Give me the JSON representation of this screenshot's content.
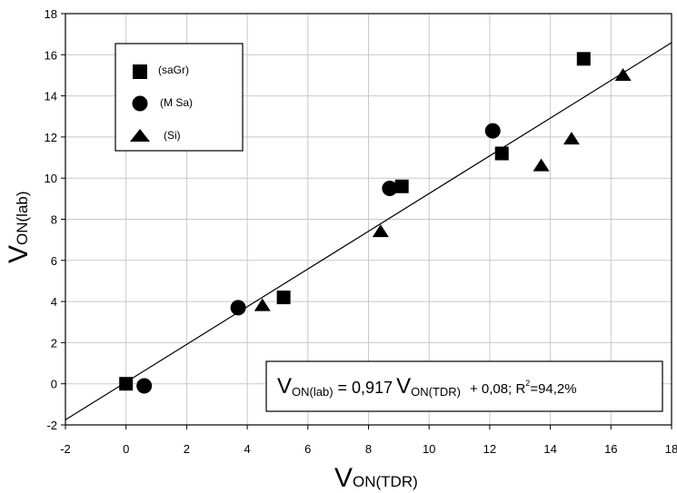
{
  "chart_data": {
    "type": "scatter",
    "title": "",
    "xlim": [
      -2,
      18
    ],
    "ylim": [
      -2,
      18
    ],
    "x_ticks": [
      -2,
      0,
      2,
      4,
      6,
      8,
      10,
      12,
      14,
      16,
      18
    ],
    "y_ticks": [
      -2,
      0,
      2,
      4,
      6,
      8,
      10,
      12,
      14,
      16,
      18
    ],
    "grid": true,
    "xlabel": {
      "main": "V",
      "sub": "ON(TDR)"
    },
    "ylabel": {
      "main": "V",
      "sub": "ON(lab)"
    },
    "legend_position": "top-left",
    "series": [
      {
        "name": "(saGr)",
        "marker": "square",
        "points": [
          {
            "x": 0.0,
            "y": 0.0
          },
          {
            "x": 5.2,
            "y": 4.2
          },
          {
            "x": 9.1,
            "y": 9.6
          },
          {
            "x": 12.4,
            "y": 11.2
          },
          {
            "x": 15.1,
            "y": 15.8
          }
        ]
      },
      {
        "name": "(M Sa)",
        "marker": "circle",
        "points": [
          {
            "x": 0.6,
            "y": -0.1
          },
          {
            "x": 3.7,
            "y": 3.7
          },
          {
            "x": 8.7,
            "y": 9.5
          },
          {
            "x": 12.1,
            "y": 12.3
          }
        ]
      },
      {
        "name": "(Si)",
        "marker": "triangle",
        "points": [
          {
            "x": 4.5,
            "y": 3.8
          },
          {
            "x": 8.4,
            "y": 7.4
          },
          {
            "x": 13.7,
            "y": 10.6
          },
          {
            "x": 14.7,
            "y": 11.9
          },
          {
            "x": 16.4,
            "y": 15.0
          }
        ]
      }
    ],
    "fit_line": {
      "slope": 0.917,
      "intercept": 0.08
    },
    "equation": {
      "v1": "V",
      "sub1": "ON(lab)",
      "eq": " = 0,917",
      "v2": "V",
      "sub2": "ON(TDR)",
      "rest": "+ 0,08; R",
      "sup": "2",
      "r2": "=94,2%"
    }
  }
}
